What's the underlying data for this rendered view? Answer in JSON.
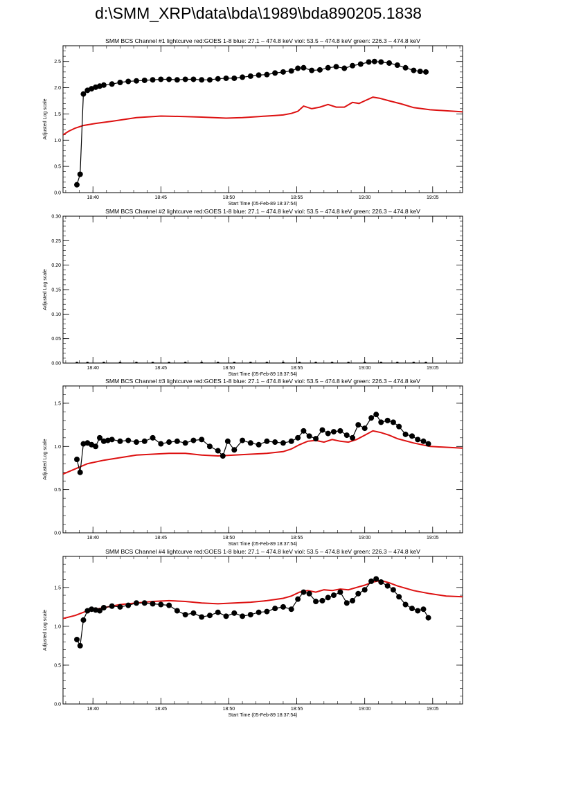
{
  "page": {
    "title": "d:\\SMM_XRP\\data\\bda\\1989\\bda890205.1838"
  },
  "colors": {
    "goes": "#dd1111",
    "bcs": "#000000",
    "axis": "#000000"
  },
  "chart_data": [
    {
      "type": "line",
      "title": "SMM BCS Channel #1 lightcurve  red:GOES 1-8  blue: 27.1 – 474.8 keV  viol: 53.5 – 474.8 keV  green: 226.3 – 474.8 keV",
      "xlabel": "Start Time (05-Feb-89 18:37:54)",
      "ylabel": "Adjusted Log scale",
      "xlim": [
        18.63,
        19.12
      ],
      "ylim": [
        0,
        2.8
      ],
      "yticks": [
        0,
        0.5,
        1.0,
        1.5,
        2.0,
        2.5
      ],
      "ytick_labels": [
        "0.0",
        "0.5",
        "1.0",
        "1.5",
        "2.0",
        "2.5"
      ],
      "xticks": [
        18.6667,
        18.75,
        18.8333,
        18.9167,
        19.0,
        19.0833
      ],
      "xtick_labels": [
        "18:40",
        "18:45",
        "18:50",
        "18:55",
        "19:00",
        "19:05"
      ],
      "series": [
        {
          "name": "GOES 1-8",
          "style": "line",
          "color": "#dd1111",
          "x": [
            18.63,
            18.637,
            18.645,
            18.655,
            18.67,
            18.69,
            18.72,
            18.75,
            18.78,
            18.8,
            18.83,
            18.85,
            18.87,
            18.89,
            18.9,
            18.91,
            18.918,
            18.925,
            18.935,
            18.945,
            18.955,
            18.965,
            18.975,
            18.985,
            18.993,
            19.0,
            19.01,
            19.018,
            19.03,
            19.045,
            19.06,
            19.08,
            19.1,
            19.12
          ],
          "y": [
            1.1,
            1.17,
            1.23,
            1.28,
            1.32,
            1.36,
            1.43,
            1.46,
            1.45,
            1.44,
            1.42,
            1.43,
            1.45,
            1.47,
            1.48,
            1.51,
            1.55,
            1.65,
            1.6,
            1.63,
            1.68,
            1.63,
            1.63,
            1.72,
            1.7,
            1.75,
            1.82,
            1.8,
            1.75,
            1.69,
            1.62,
            1.58,
            1.56,
            1.54
          ]
        },
        {
          "name": "BCS",
          "style": "markers",
          "color": "#000000",
          "x": [
            18.647,
            18.651,
            18.655,
            18.66,
            18.665,
            18.67,
            18.675,
            18.68,
            18.69,
            18.7,
            18.71,
            18.72,
            18.73,
            18.74,
            18.75,
            18.76,
            18.77,
            18.78,
            18.79,
            18.8,
            18.81,
            18.82,
            18.83,
            18.84,
            18.85,
            18.86,
            18.87,
            18.88,
            18.89,
            18.9,
            18.91,
            18.918,
            18.925,
            18.935,
            18.945,
            18.955,
            18.965,
            18.975,
            18.985,
            18.995,
            19.005,
            19.012,
            19.02,
            19.03,
            19.04,
            19.05,
            19.06,
            19.068,
            19.075
          ],
          "y": [
            0.15,
            0.35,
            1.88,
            1.95,
            1.98,
            2.01,
            2.03,
            2.05,
            2.07,
            2.1,
            2.12,
            2.13,
            2.14,
            2.15,
            2.16,
            2.16,
            2.15,
            2.16,
            2.16,
            2.15,
            2.15,
            2.17,
            2.18,
            2.18,
            2.2,
            2.22,
            2.24,
            2.25,
            2.28,
            2.3,
            2.32,
            2.37,
            2.38,
            2.33,
            2.34,
            2.38,
            2.4,
            2.37,
            2.42,
            2.45,
            2.49,
            2.5,
            2.49,
            2.47,
            2.43,
            2.38,
            2.33,
            2.31,
            2.3
          ]
        }
      ]
    },
    {
      "type": "line",
      "title": "SMM BCS Channel #2 lightcurve  red:GOES 1-8  blue: 27.1 – 474.8 keV  viol: 53.5 – 474.8 keV  green: 226.3 – 474.8 keV",
      "xlabel": "Start Time (05-Feb-89 18:37:54)",
      "ylabel": "Adjusted Log scale",
      "xlim": [
        18.63,
        19.12
      ],
      "ylim": [
        0,
        0.3
      ],
      "yticks": [
        0,
        0.05,
        0.1,
        0.15,
        0.2,
        0.25,
        0.3
      ],
      "ytick_labels": [
        "0.00",
        "0.05",
        "0.10",
        "0.15",
        "0.20",
        "0.25",
        "0.30"
      ],
      "xticks": [
        18.6667,
        18.75,
        18.8333,
        18.9167,
        19.0,
        19.0833
      ],
      "xtick_labels": [
        "18:40",
        "18:45",
        "18:50",
        "18:55",
        "19:00",
        "19:05"
      ],
      "series": [
        {
          "name": "BCS",
          "style": "markers-small",
          "color": "#000000",
          "x": [
            18.647,
            18.66,
            18.68,
            18.7,
            18.72,
            18.74,
            18.76,
            18.78,
            18.8,
            18.82,
            18.84,
            18.86,
            18.88,
            18.9,
            18.92,
            18.94,
            18.96,
            18.98,
            19.0,
            19.02,
            19.04,
            19.06,
            19.075
          ],
          "y": [
            0,
            0,
            0,
            0,
            0,
            0,
            0,
            0,
            0,
            0,
            0,
            0,
            0,
            0,
            0,
            0,
            0,
            0,
            0,
            0,
            0,
            0,
            0
          ]
        }
      ]
    },
    {
      "type": "line",
      "title": "SMM BCS Channel #3 lightcurve  red:GOES 1-8  blue: 27.1 – 474.8 keV  viol: 53.5 – 474.8 keV  green: 226.3 – 474.8 keV",
      "xlabel": "Start Time (05-Feb-89 18:37:54)",
      "ylabel": "Adjusted Log scale",
      "xlim": [
        18.63,
        19.12
      ],
      "ylim": [
        0,
        1.7
      ],
      "yticks": [
        0,
        0.5,
        1.0,
        1.5
      ],
      "ytick_labels": [
        "0.0",
        "0.5",
        "1.0",
        "1.5"
      ],
      "xticks": [
        18.6667,
        18.75,
        18.8333,
        18.9167,
        19.0,
        19.0833
      ],
      "xtick_labels": [
        "18:40",
        "18:45",
        "18:50",
        "18:55",
        "19:00",
        "19:05"
      ],
      "series": [
        {
          "name": "GOES 1-8",
          "style": "line",
          "color": "#dd1111",
          "x": [
            18.63,
            18.645,
            18.66,
            18.68,
            18.7,
            18.72,
            18.74,
            18.76,
            18.78,
            18.8,
            18.82,
            18.84,
            18.86,
            18.88,
            18.9,
            18.91,
            18.92,
            18.93,
            18.94,
            18.95,
            18.96,
            18.97,
            18.98,
            18.99,
            19.0,
            19.01,
            19.02,
            19.03,
            19.04,
            19.06,
            19.08,
            19.1,
            19.12
          ],
          "y": [
            0.68,
            0.74,
            0.8,
            0.84,
            0.87,
            0.9,
            0.91,
            0.92,
            0.92,
            0.9,
            0.89,
            0.9,
            0.91,
            0.92,
            0.94,
            0.97,
            1.02,
            1.06,
            1.07,
            1.05,
            1.08,
            1.06,
            1.05,
            1.08,
            1.13,
            1.18,
            1.16,
            1.13,
            1.09,
            1.04,
            1.0,
            0.99,
            0.98
          ]
        },
        {
          "name": "BCS",
          "style": "markers",
          "color": "#000000",
          "x": [
            18.647,
            18.651,
            18.655,
            18.66,
            18.665,
            18.67,
            18.675,
            18.68,
            18.685,
            18.69,
            18.7,
            18.71,
            18.72,
            18.73,
            18.74,
            18.75,
            18.76,
            18.77,
            18.78,
            18.79,
            18.8,
            18.81,
            18.82,
            18.826,
            18.832,
            18.84,
            18.85,
            18.86,
            18.87,
            18.88,
            18.89,
            18.9,
            18.91,
            18.918,
            18.925,
            18.932,
            18.94,
            18.948,
            18.955,
            18.962,
            18.97,
            18.978,
            18.985,
            18.992,
            19.0,
            19.008,
            19.014,
            19.02,
            19.028,
            19.035,
            19.042,
            19.05,
            19.058,
            19.065,
            19.072,
            19.078
          ],
          "y": [
            0.85,
            0.7,
            1.03,
            1.04,
            1.02,
            1.0,
            1.1,
            1.06,
            1.07,
            1.08,
            1.06,
            1.07,
            1.05,
            1.06,
            1.1,
            1.03,
            1.05,
            1.06,
            1.04,
            1.07,
            1.08,
            1.0,
            0.95,
            0.89,
            1.06,
            0.96,
            1.07,
            1.04,
            1.02,
            1.06,
            1.05,
            1.04,
            1.06,
            1.1,
            1.18,
            1.12,
            1.09,
            1.19,
            1.15,
            1.17,
            1.18,
            1.13,
            1.1,
            1.25,
            1.21,
            1.33,
            1.37,
            1.28,
            1.3,
            1.28,
            1.23,
            1.14,
            1.12,
            1.08,
            1.06,
            1.03
          ]
        }
      ]
    },
    {
      "type": "line",
      "title": "SMM BCS Channel #4 lightcurve  red:GOES 1-8  blue: 27.1 – 474.8 keV  viol: 53.5 – 474.8 keV  green: 226.3 – 474.8 keV",
      "xlabel": "Start Time (05-Feb-89 18:37:54)",
      "ylabel": "Adjusted Log scale",
      "xlim": [
        18.63,
        19.12
      ],
      "ylim": [
        0,
        1.9
      ],
      "yticks": [
        0,
        0.5,
        1.0,
        1.5
      ],
      "ytick_labels": [
        "0.0",
        "0.5",
        "1.0",
        "1.5"
      ],
      "xticks": [
        18.6667,
        18.75,
        18.8333,
        18.9167,
        19.0,
        19.0833
      ],
      "xtick_labels": [
        "18:40",
        "18:45",
        "18:50",
        "18:55",
        "19:00",
        "19:05"
      ],
      "series": [
        {
          "name": "GOES 1-8",
          "style": "line",
          "color": "#dd1111",
          "x": [
            18.63,
            18.645,
            18.66,
            18.68,
            18.7,
            18.72,
            18.74,
            18.76,
            18.78,
            18.8,
            18.82,
            18.84,
            18.86,
            18.88,
            18.9,
            18.91,
            18.92,
            18.93,
            18.94,
            18.95,
            18.96,
            18.97,
            18.98,
            18.99,
            19.0,
            19.01,
            19.02,
            19.03,
            19.04,
            19.06,
            19.08,
            19.1,
            19.12
          ],
          "y": [
            1.1,
            1.14,
            1.2,
            1.24,
            1.28,
            1.3,
            1.32,
            1.33,
            1.32,
            1.3,
            1.29,
            1.3,
            1.31,
            1.33,
            1.36,
            1.39,
            1.44,
            1.46,
            1.44,
            1.47,
            1.46,
            1.48,
            1.47,
            1.5,
            1.53,
            1.57,
            1.59,
            1.56,
            1.52,
            1.46,
            1.42,
            1.39,
            1.38
          ]
        },
        {
          "name": "BCS",
          "style": "markers",
          "color": "#000000",
          "x": [
            18.647,
            18.651,
            18.655,
            18.66,
            18.665,
            18.67,
            18.675,
            18.68,
            18.69,
            18.7,
            18.71,
            18.72,
            18.73,
            18.74,
            18.75,
            18.76,
            18.77,
            18.78,
            18.79,
            18.8,
            18.81,
            18.82,
            18.83,
            18.84,
            18.85,
            18.86,
            18.87,
            18.88,
            18.89,
            18.9,
            18.91,
            18.918,
            18.925,
            18.932,
            18.94,
            18.948,
            18.955,
            18.962,
            18.97,
            18.978,
            18.985,
            18.992,
            19.0,
            19.008,
            19.014,
            19.02,
            19.028,
            19.035,
            19.042,
            19.05,
            19.058,
            19.065,
            19.072,
            19.078
          ],
          "y": [
            0.83,
            0.75,
            1.08,
            1.2,
            1.22,
            1.21,
            1.2,
            1.24,
            1.26,
            1.25,
            1.27,
            1.3,
            1.3,
            1.29,
            1.28,
            1.27,
            1.2,
            1.15,
            1.17,
            1.12,
            1.14,
            1.18,
            1.13,
            1.17,
            1.13,
            1.15,
            1.18,
            1.19,
            1.23,
            1.25,
            1.22,
            1.35,
            1.44,
            1.42,
            1.32,
            1.33,
            1.37,
            1.4,
            1.44,
            1.3,
            1.33,
            1.42,
            1.47,
            1.58,
            1.61,
            1.57,
            1.52,
            1.47,
            1.38,
            1.28,
            1.23,
            1.2,
            1.22,
            1.11
          ]
        }
      ]
    }
  ]
}
